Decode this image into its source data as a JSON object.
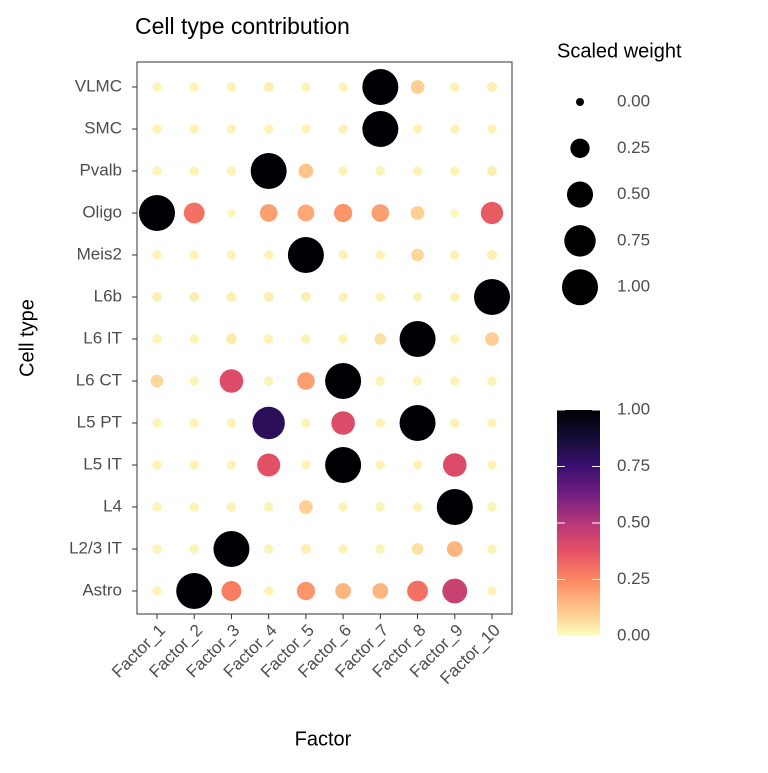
{
  "chart_data": {
    "type": "dot",
    "title": "Cell type contribution",
    "x_label": "Factor",
    "y_label": "Cell type",
    "x_categories": [
      "Factor_1",
      "Factor_2",
      "Factor_3",
      "Factor_4",
      "Factor_5",
      "Factor_6",
      "Factor_7",
      "Factor_8",
      "Factor_9",
      "Factor_10"
    ],
    "y_categories": [
      "VLMC",
      "SMC",
      "Pvalb",
      "Oligo",
      "Meis2",
      "L6b",
      "L6 IT",
      "L6 CT",
      "L5 PT",
      "L5 IT",
      "L4",
      "L2/3 IT",
      "Astro"
    ],
    "values": [
      [
        0.02,
        0.02,
        0.02,
        0.03,
        0.02,
        0.02,
        1.0,
        0.1,
        0.02,
        0.03
      ],
      [
        0.02,
        0.02,
        0.02,
        0.02,
        0.02,
        0.02,
        1.0,
        0.02,
        0.02,
        0.02
      ],
      [
        0.02,
        0.02,
        0.02,
        1.0,
        0.12,
        0.02,
        0.02,
        0.02,
        0.02,
        0.03
      ],
      [
        1.0,
        0.3,
        0.01,
        0.2,
        0.18,
        0.22,
        0.2,
        0.1,
        0.01,
        0.35
      ],
      [
        0.02,
        0.02,
        0.02,
        0.02,
        1.0,
        0.02,
        0.02,
        0.08,
        0.02,
        0.03
      ],
      [
        0.03,
        0.03,
        0.03,
        0.03,
        0.03,
        0.02,
        0.02,
        0.02,
        0.02,
        1.0
      ],
      [
        0.02,
        0.02,
        0.04,
        0.02,
        0.02,
        0.02,
        0.06,
        1.0,
        0.02,
        0.1
      ],
      [
        0.08,
        0.02,
        0.4,
        0.02,
        0.2,
        1.0,
        0.02,
        0.02,
        0.02,
        0.02
      ],
      [
        0.02,
        0.02,
        0.02,
        0.8,
        0.02,
        0.4,
        0.02,
        1.0,
        0.02,
        0.02
      ],
      [
        0.02,
        0.02,
        0.02,
        0.38,
        0.02,
        1.0,
        0.02,
        0.02,
        0.4,
        0.02
      ],
      [
        0.02,
        0.02,
        0.02,
        0.02,
        0.1,
        0.02,
        0.02,
        0.02,
        1.0,
        0.02
      ],
      [
        0.02,
        0.02,
        1.0,
        0.02,
        0.03,
        0.02,
        0.02,
        0.06,
        0.15,
        0.02
      ],
      [
        0.02,
        1.0,
        0.27,
        0.02,
        0.22,
        0.15,
        0.15,
        0.3,
        0.45,
        0.02
      ]
    ],
    "size_legend_title": "Scaled weight",
    "size_ticks": [
      {
        "value": 0,
        "label": "0.00"
      },
      {
        "value": 0.25,
        "label": "0.25"
      },
      {
        "value": 0.5,
        "label": "0.50"
      },
      {
        "value": 0.75,
        "label": "0.75"
      },
      {
        "value": 1,
        "label": "1.00"
      }
    ],
    "color_lim": [
      0,
      1
    ],
    "color_ticks": [
      {
        "value": 0,
        "label": "0.00"
      },
      {
        "value": 0.25,
        "label": "0.25"
      },
      {
        "value": 0.5,
        "label": "0.50"
      },
      {
        "value": 0.75,
        "label": "0.75"
      },
      {
        "value": 1,
        "label": "1.00"
      }
    ],
    "color_stops": [
      "#fcfdbf",
      "#fec287",
      "#fb8761",
      "#e55064",
      "#b73779",
      "#721f81",
      "#3b0f70",
      "#140e36",
      "#000004"
    ]
  }
}
